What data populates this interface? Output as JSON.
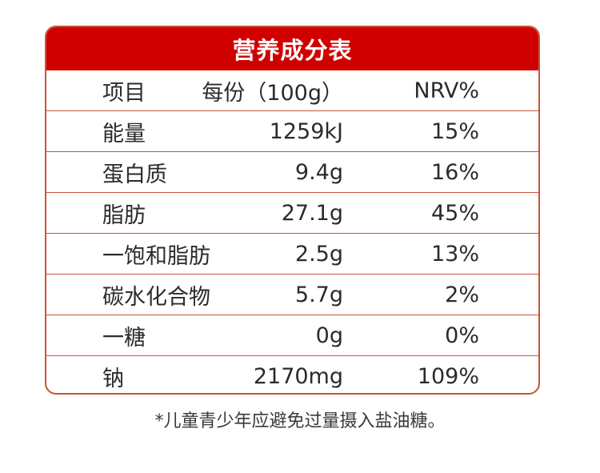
{
  "title": "营养成分表",
  "headers": {
    "item": "项目",
    "amount": "每份（100g）",
    "nrv": "NRV%"
  },
  "rows": [
    {
      "name": "能量",
      "amount": "1259kJ",
      "nrv": "15%"
    },
    {
      "name": "蛋白质",
      "amount": "9.4g",
      "nrv": "16%"
    },
    {
      "name": "脂肪",
      "amount": "27.1g",
      "nrv": "45%"
    },
    {
      "name": "一饱和脂肪",
      "amount": "2.5g",
      "nrv": "13%"
    },
    {
      "name": "碳水化合物",
      "amount": "5.7g",
      "nrv": "2%"
    },
    {
      "name": "一糖",
      "amount": "0g",
      "nrv": "0%"
    },
    {
      "name": "钠",
      "amount": "2170mg",
      "nrv": "109%"
    }
  ],
  "note": "*儿童青少年应避免过量摄入盐油糖。",
  "colors": {
    "title_bg": "#d10000",
    "border": "#c8543a",
    "title_text": "#ffffff"
  }
}
